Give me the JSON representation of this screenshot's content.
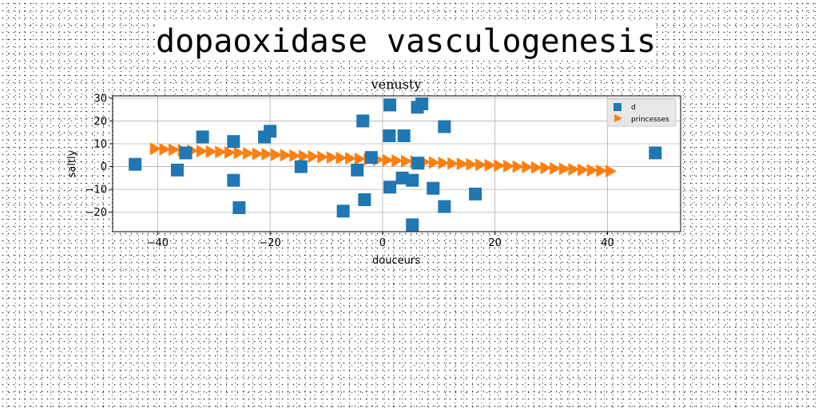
{
  "title": "dopaoxidase vasculogenesis",
  "chart_data": {
    "type": "scatter",
    "title": "venusty",
    "xlabel": "douceurs",
    "ylabel": "saltly",
    "xlim": [
      -48,
      53
    ],
    "ylim": [
      -28.5,
      31
    ],
    "xticks": [
      -40,
      -20,
      0,
      20,
      40
    ],
    "yticks": [
      -20,
      -10,
      0,
      10,
      20,
      30
    ],
    "grid": true,
    "legend_position": "top-right",
    "series": [
      {
        "name": "d",
        "marker": "square",
        "color": "#1f77b4",
        "points": [
          [
            -44,
            1
          ],
          [
            -36.5,
            -1.5
          ],
          [
            -35,
            6
          ],
          [
            -32,
            13
          ],
          [
            -26.5,
            11
          ],
          [
            -26.5,
            -6
          ],
          [
            -25.5,
            -18
          ],
          [
            -21,
            13
          ],
          [
            -20,
            15.5
          ],
          [
            -14.5,
            0
          ],
          [
            -7,
            -19.5
          ],
          [
            -4.5,
            -1.5
          ],
          [
            -3.5,
            20
          ],
          [
            -3.2,
            -14.5
          ],
          [
            -2,
            4
          ],
          [
            1.2,
            13.5
          ],
          [
            1.3,
            27
          ],
          [
            1.3,
            -9
          ],
          [
            3.5,
            -5
          ],
          [
            3.8,
            13.5
          ],
          [
            5.3,
            -6
          ],
          [
            5.3,
            -25.5
          ],
          [
            6.2,
            26
          ],
          [
            6.3,
            1.5
          ],
          [
            7,
            27.5
          ],
          [
            9,
            -9.5
          ],
          [
            11,
            17.5
          ],
          [
            11,
            -17.5
          ],
          [
            16.5,
            -12
          ],
          [
            48.5,
            6
          ]
        ]
      },
      {
        "name": "princesses",
        "marker": "triangle-right",
        "color": "#ff7f0e",
        "line": {
          "x_from": -40.5,
          "x_to": 40.5,
          "y_from": 7.8,
          "y_to": -2.0,
          "count": 50
        }
      }
    ]
  }
}
